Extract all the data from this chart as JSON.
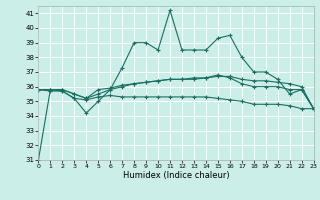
{
  "xlabel": "Humidex (Indice chaleur)",
  "xlim": [
    0,
    23
  ],
  "ylim": [
    31,
    41.5
  ],
  "yticks": [
    31,
    32,
    33,
    34,
    35,
    36,
    37,
    38,
    39,
    40,
    41
  ],
  "xticks": [
    0,
    1,
    2,
    3,
    4,
    5,
    6,
    7,
    8,
    9,
    10,
    11,
    12,
    13,
    14,
    15,
    16,
    17,
    18,
    19,
    20,
    21,
    22,
    23
  ],
  "bg_color": "#cceee8",
  "line_color": "#1a6e62",
  "grid_color": "#ffffff",
  "lines": [
    [
      31.0,
      35.8,
      35.7,
      35.2,
      34.2,
      35.0,
      35.8,
      37.3,
      39.0,
      39.0,
      38.5,
      41.2,
      38.5,
      38.5,
      38.5,
      39.3,
      39.5,
      38.0,
      37.0,
      37.0,
      36.5,
      35.5,
      35.8,
      34.5
    ],
    [
      35.8,
      35.8,
      35.8,
      35.5,
      35.2,
      35.8,
      35.9,
      36.1,
      36.2,
      36.3,
      36.4,
      36.5,
      36.5,
      36.5,
      36.6,
      36.7,
      36.7,
      36.5,
      36.4,
      36.4,
      36.3,
      36.2,
      36.0,
      34.5
    ],
    [
      35.8,
      35.7,
      35.7,
      35.2,
      35.1,
      35.3,
      35.4,
      35.3,
      35.3,
      35.3,
      35.3,
      35.3,
      35.3,
      35.3,
      35.3,
      35.2,
      35.1,
      35.0,
      34.8,
      34.8,
      34.8,
      34.7,
      34.5,
      34.5
    ],
    [
      35.8,
      35.8,
      35.8,
      35.5,
      35.2,
      35.5,
      35.8,
      36.0,
      36.2,
      36.3,
      36.4,
      36.5,
      36.5,
      36.6,
      36.6,
      36.8,
      36.6,
      36.2,
      36.0,
      36.0,
      36.0,
      35.8,
      35.8,
      34.5
    ]
  ]
}
